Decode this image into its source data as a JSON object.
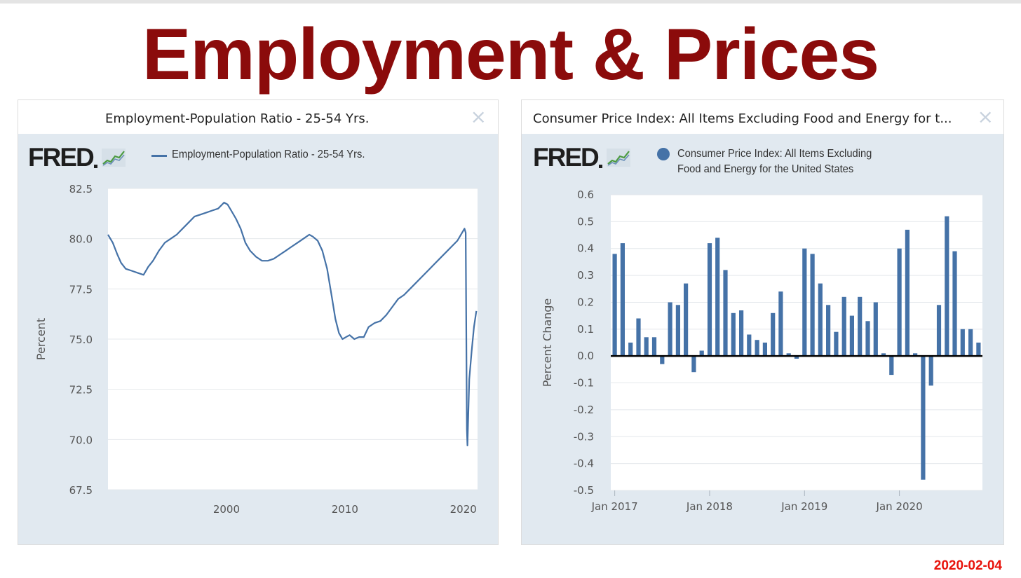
{
  "page": {
    "title": "Employment & Prices",
    "date_stamp": "2020-02-04",
    "title_color": "#8b0b0b",
    "date_color": "#e8140c"
  },
  "panels": [
    {
      "title": "Employment-Population Ratio - 25-54 Yrs.",
      "close_label": "×",
      "logo": "FRED",
      "legend": "Employment-Population Ratio - 25-54 Yrs."
    },
    {
      "title": "Consumer Price Index: All Items Excluding Food and Energy for t...",
      "close_label": "×",
      "logo": "FRED",
      "legend_line1": "Consumer Price Index: All Items Excluding",
      "legend_line2": "Food and Energy for the United States"
    }
  ],
  "chart_data": [
    {
      "type": "line",
      "title": "Employment-Population Ratio - 25-54 Yrs.",
      "xlabel": "",
      "ylabel": "Percent",
      "color": "#4572a7",
      "xlim": [
        1990,
        2021.2
      ],
      "ylim": [
        67.5,
        82.5
      ],
      "yticks": [
        "82.5",
        "80.0",
        "77.5",
        "75.0",
        "72.5",
        "70.0",
        "67.5"
      ],
      "ytick_values": [
        82.5,
        80.0,
        77.5,
        75.0,
        72.5,
        70.0,
        67.5
      ],
      "xticks": [
        "2000",
        "2010",
        "2020"
      ],
      "xtick_values": [
        2000,
        2010,
        2020
      ],
      "series": [
        {
          "name": "Employment-Population Ratio - 25-54 Yrs.",
          "x": [
            1990.0,
            1990.4,
            1990.8,
            1991.1,
            1991.5,
            1992.0,
            1992.5,
            1993.0,
            1993.4,
            1993.8,
            1994.3,
            1994.8,
            1995.3,
            1995.8,
            1996.3,
            1996.8,
            1997.3,
            1997.8,
            1998.3,
            1998.8,
            1999.3,
            1999.8,
            2000.1,
            2000.4,
            2000.8,
            2001.2,
            2001.6,
            2002.0,
            2002.5,
            2003.0,
            2003.5,
            2004.0,
            2004.5,
            2005.0,
            2005.5,
            2006.0,
            2006.5,
            2007.0,
            2007.3,
            2007.7,
            2008.1,
            2008.5,
            2008.9,
            2009.2,
            2009.5,
            2009.8,
            2010.1,
            2010.4,
            2010.8,
            2011.2,
            2011.6,
            2012.0,
            2012.5,
            2013.0,
            2013.5,
            2014.0,
            2014.5,
            2015.0,
            2015.5,
            2016.0,
            2016.5,
            2017.0,
            2017.5,
            2018.0,
            2018.5,
            2019.0,
            2019.5,
            2019.9,
            2020.1,
            2020.2,
            2020.3,
            2020.35,
            2020.5,
            2020.7,
            2020.9,
            2021.1
          ],
          "y": [
            80.2,
            79.8,
            79.2,
            78.8,
            78.5,
            78.4,
            78.3,
            78.2,
            78.6,
            78.9,
            79.4,
            79.8,
            80.0,
            80.2,
            80.5,
            80.8,
            81.1,
            81.2,
            81.3,
            81.4,
            81.5,
            81.8,
            81.7,
            81.4,
            81.0,
            80.5,
            79.8,
            79.4,
            79.1,
            78.9,
            78.9,
            79.0,
            79.2,
            79.4,
            79.6,
            79.8,
            80.0,
            80.2,
            80.1,
            79.9,
            79.4,
            78.5,
            77.1,
            76.0,
            75.3,
            75.0,
            75.1,
            75.2,
            75.0,
            75.1,
            75.1,
            75.6,
            75.8,
            75.9,
            76.2,
            76.6,
            77.0,
            77.2,
            77.5,
            77.8,
            78.1,
            78.4,
            78.7,
            79.0,
            79.3,
            79.6,
            79.9,
            80.3,
            80.5,
            80.3,
            70.5,
            69.7,
            73.0,
            74.4,
            75.6,
            76.4
          ]
        }
      ]
    },
    {
      "type": "bar",
      "title": "Consumer Price Index: All Items Excluding Food and Energy for the United States",
      "xlabel": "",
      "ylabel": "Percent Change",
      "color": "#4572a7",
      "ylim": [
        -0.5,
        0.6
      ],
      "yticks": [
        "0.6",
        "0.5",
        "0.4",
        "0.3",
        "0.2",
        "0.1",
        "0.0",
        "-0.1",
        "-0.2",
        "-0.3",
        "-0.4",
        "-0.5"
      ],
      "ytick_values": [
        0.6,
        0.5,
        0.4,
        0.3,
        0.2,
        0.1,
        0.0,
        -0.1,
        -0.2,
        -0.3,
        -0.4,
        -0.5
      ],
      "xticks": [
        "Jan 2017",
        "Jan 2018",
        "Jan 2019",
        "Jan 2020"
      ],
      "xtick_indices": [
        0,
        12,
        24,
        36
      ],
      "categories": [
        "2017-01",
        "2017-02",
        "2017-03",
        "2017-04",
        "2017-05",
        "2017-06",
        "2017-07",
        "2017-08",
        "2017-09",
        "2017-10",
        "2017-11",
        "2017-12",
        "2018-01",
        "2018-02",
        "2018-03",
        "2018-04",
        "2018-05",
        "2018-06",
        "2018-07",
        "2018-08",
        "2018-09",
        "2018-10",
        "2018-11",
        "2018-12",
        "2019-01",
        "2019-02",
        "2019-03",
        "2019-04",
        "2019-05",
        "2019-06",
        "2019-07",
        "2019-08",
        "2019-09",
        "2019-10",
        "2019-11",
        "2019-12",
        "2020-01",
        "2020-02",
        "2020-03",
        "2020-04",
        "2020-05",
        "2020-06",
        "2020-07",
        "2020-08",
        "2020-09",
        "2020-10",
        "2020-11"
      ],
      "values": [
        0.38,
        0.42,
        0.05,
        0.14,
        0.07,
        0.07,
        -0.03,
        0.2,
        0.19,
        0.27,
        -0.06,
        0.02,
        0.42,
        0.44,
        0.32,
        0.16,
        0.17,
        0.08,
        0.06,
        0.05,
        0.16,
        0.24,
        0.01,
        -0.01,
        0.4,
        0.38,
        0.27,
        0.19,
        0.09,
        0.22,
        0.15,
        0.22,
        0.13,
        0.2,
        0.01,
        -0.07,
        0.4,
        0.47,
        0.01,
        -0.46,
        -0.11,
        0.19,
        0.52,
        0.39,
        0.1,
        0.1,
        0.05
      ]
    }
  ]
}
